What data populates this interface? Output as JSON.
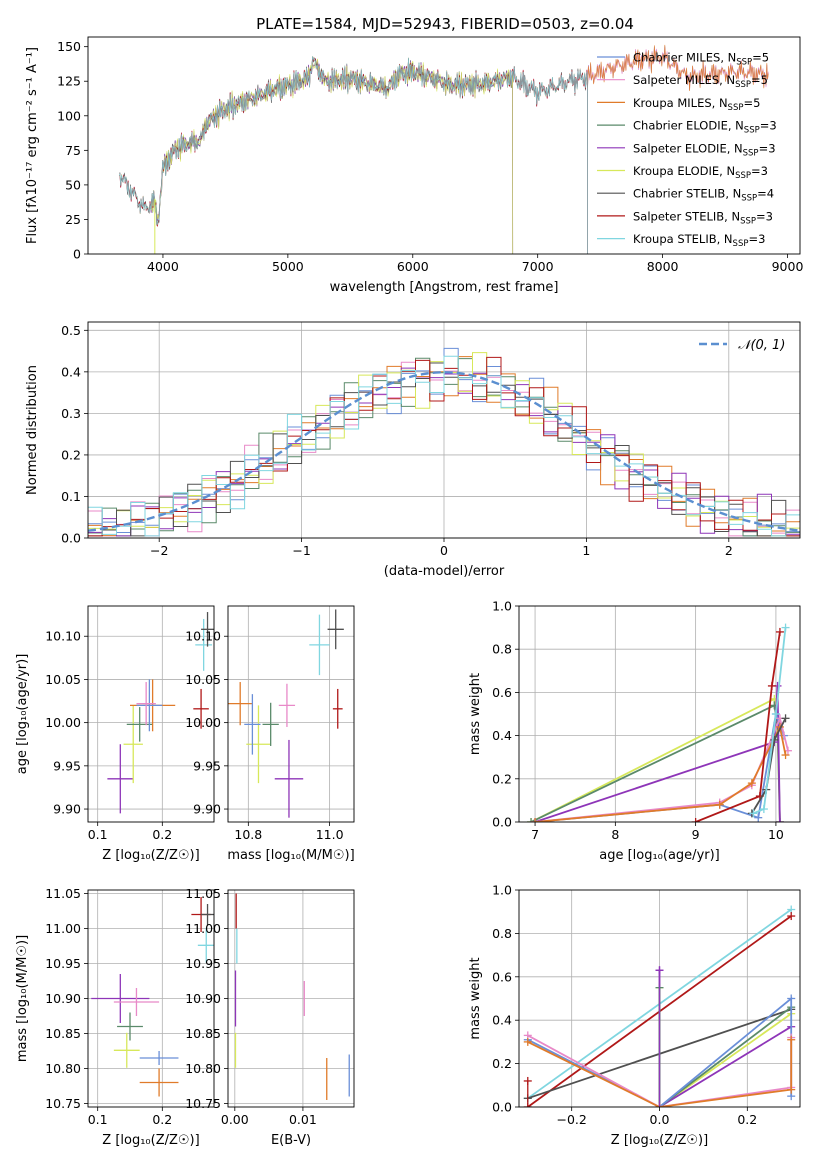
{
  "figure": {
    "title": "PLATE=1584, MJD=52943, FIBERID=0503, z=0.04"
  },
  "colors": {
    "Chabrier MILES": "#6a8fd8",
    "Salpeter MILES": "#e889c8",
    "Kroupa MILES": "#e07b2a",
    "Chabrier ELODIE": "#5a8a6a",
    "Salpeter ELODIE": "#8e35b8",
    "Kroupa ELODIE": "#d7e85a",
    "Chabrier STELIB": "#505050",
    "Salpeter STELIB": "#b01818",
    "Kroupa STELIB": "#80d6e0",
    "gaussian": "#5b8fd0"
  },
  "chart_data": [
    {
      "id": "spectrum",
      "type": "line",
      "xlabel": "wavelength [Angstrom, rest frame]",
      "ylabel": "Flux [fλ10⁻¹⁷ erg cm⁻² s⁻¹ A⁻¹]",
      "xlim": [
        3400,
        9100
      ],
      "ylim": [
        0,
        157
      ],
      "xticks": [
        4000,
        5000,
        6000,
        7000,
        8000,
        9000
      ],
      "yticks": [
        0,
        25,
        50,
        75,
        100,
        125,
        150
      ],
      "legend_position": "right",
      "series": [
        {
          "name": "Chabrier MILES, N",
          "sub": "SSP",
          "suffix": "=5",
          "range": [
            3650,
            8850
          ],
          "offset": 0
        },
        {
          "name": "Salpeter MILES, N",
          "sub": "SSP",
          "suffix": "=5",
          "range": [
            3650,
            8850
          ],
          "offset": 1
        },
        {
          "name": "Kroupa MILES, N",
          "sub": "SSP",
          "suffix": "=5",
          "range": [
            3650,
            8850
          ],
          "offset": -1
        },
        {
          "name": "Chabrier ELODIE, N",
          "sub": "SSP",
          "suffix": "=3",
          "range": [
            3900,
            6800
          ],
          "offset": 0.5
        },
        {
          "name": "Salpeter ELODIE, N",
          "sub": "SSP",
          "suffix": "=3",
          "range": [
            3900,
            6800
          ],
          "offset": -0.5
        },
        {
          "name": "Kroupa ELODIE, N",
          "sub": "SSP",
          "suffix": "=3",
          "range": [
            3900,
            6800
          ],
          "offset": 1.5
        },
        {
          "name": "Chabrier STELIB, N",
          "sub": "SSP",
          "suffix": "=4",
          "range": [
            3650,
            7400
          ],
          "offset": -1.5
        },
        {
          "name": "Salpeter STELIB, N",
          "sub": "SSP",
          "suffix": "=3",
          "range": [
            3650,
            7400
          ],
          "offset": 0.8
        },
        {
          "name": "Kroupa STELIB, N",
          "sub": "SSP",
          "suffix": "=3",
          "range": [
            3650,
            7400
          ],
          "offset": -0.8
        }
      ],
      "continuum": [
        [
          3650,
          58
        ],
        [
          3750,
          45
        ],
        [
          3850,
          33
        ],
        [
          3930,
          38
        ],
        [
          3960,
          22
        ],
        [
          4000,
          62
        ],
        [
          4100,
          76
        ],
        [
          4200,
          80
        ],
        [
          4300,
          82
        ],
        [
          4350,
          95
        ],
        [
          4500,
          105
        ],
        [
          4700,
          112
        ],
        [
          4860,
          118
        ],
        [
          5000,
          122
        ],
        [
          5100,
          125
        ],
        [
          5170,
          128
        ],
        [
          5200,
          140
        ],
        [
          5300,
          125
        ],
        [
          5500,
          127
        ],
        [
          5800,
          120
        ],
        [
          5890,
          130
        ],
        [
          6000,
          132
        ],
        [
          6200,
          126
        ],
        [
          6300,
          122
        ],
        [
          6563,
          123
        ],
        [
          6700,
          126
        ],
        [
          6800,
          128
        ],
        [
          6900,
          122
        ],
        [
          7000,
          117
        ],
        [
          7100,
          120
        ],
        [
          7250,
          125
        ],
        [
          7400,
          128
        ],
        [
          7600,
          135
        ],
        [
          7800,
          140
        ],
        [
          8000,
          143
        ],
        [
          8200,
          128
        ],
        [
          8400,
          130
        ],
        [
          8600,
          132
        ],
        [
          8800,
          130
        ]
      ]
    },
    {
      "id": "residual-histogram",
      "type": "histogram",
      "xlabel": "(data-model)/error",
      "ylabel": "Normed distribution",
      "xlim": [
        -2.5,
        2.5
      ],
      "ylim": [
        0,
        0.52
      ],
      "xticks": [
        -2,
        -1,
        0,
        1,
        2
      ],
      "yticks": [
        0.0,
        0.1,
        0.2,
        0.3,
        0.4,
        0.5
      ],
      "bin_width": 0.1,
      "grid": true,
      "legend": "𝒩(0, 1)",
      "legend_position": "top-right",
      "gaussian": {
        "mean": 0,
        "sigma": 1
      }
    },
    {
      "id": "age-vs-z",
      "type": "errorbar",
      "xlabel": "Z [log₁₀(Z/Z☉)]",
      "ylabel": "age  [log₁₀(age/yr)]",
      "xlim": [
        0.085,
        0.28
      ],
      "ylim": [
        9.885,
        10.135
      ],
      "xticks": [
        0.1,
        0.2
      ],
      "yticks": [
        9.9,
        9.95,
        10.0,
        10.05,
        10.1
      ],
      "grid": true,
      "points": [
        {
          "model": "Salpeter ELODIE",
          "x": 0.135,
          "y": 9.935,
          "xerr": 0.02,
          "yerr": 0.04
        },
        {
          "model": "Kroupa ELODIE",
          "x": 0.155,
          "y": 9.975,
          "xerr": 0.015,
          "yerr": 0.045
        },
        {
          "model": "Chabrier ELODIE",
          "x": 0.165,
          "y": 9.998,
          "xerr": 0.02,
          "yerr": 0.02
        },
        {
          "model": "Kroupa MILES",
          "x": 0.185,
          "y": 10.02,
          "xerr": 0.035,
          "yerr": 0.03
        },
        {
          "model": "Chabrier MILES",
          "x": 0.18,
          "y": 10.02,
          "xerr": 0.02,
          "yerr": 0.03
        },
        {
          "model": "Salpeter MILES",
          "x": 0.175,
          "y": 10.022,
          "xerr": 0.015,
          "yerr": 0.025
        },
        {
          "model": "Salpeter STELIB",
          "x": 0.26,
          "y": 10.016,
          "xerr": 0.012,
          "yerr": 0.023
        },
        {
          "model": "Kroupa STELIB",
          "x": 0.264,
          "y": 10.09,
          "xerr": 0.013,
          "yerr": 0.03
        },
        {
          "model": "Chabrier STELIB",
          "x": 0.27,
          "y": 10.108,
          "xerr": 0.01,
          "yerr": 0.02
        }
      ]
    },
    {
      "id": "age-vs-mass",
      "type": "errorbar",
      "xlabel": "mass [log₁₀(M/M☉)]",
      "ylabel": "",
      "xlim": [
        10.75,
        11.06
      ],
      "ylim": [
        9.885,
        10.135
      ],
      "xticks": [
        10.8,
        11.0
      ],
      "yticks": [
        9.9,
        9.95,
        10.0,
        10.05,
        10.1
      ],
      "grid": true,
      "points": [
        {
          "model": "Kroupa MILES",
          "x": 10.78,
          "y": 10.022,
          "xerr": 0.03,
          "yerr": 0.025
        },
        {
          "model": "Kroupa ELODIE",
          "x": 10.825,
          "y": 9.975,
          "xerr": 0.03,
          "yerr": 0.045
        },
        {
          "model": "Chabrier MILES",
          "x": 10.81,
          "y": 9.998,
          "xerr": 0.02,
          "yerr": 0.035
        },
        {
          "model": "Chabrier ELODIE",
          "x": 10.855,
          "y": 9.998,
          "xerr": 0.02,
          "yerr": 0.025
        },
        {
          "model": "Salpeter MILES",
          "x": 10.895,
          "y": 10.02,
          "xerr": 0.02,
          "yerr": 0.025
        },
        {
          "model": "Salpeter ELODIE",
          "x": 10.9,
          "y": 9.935,
          "xerr": 0.035,
          "yerr": 0.045
        },
        {
          "model": "Kroupa STELIB",
          "x": 10.975,
          "y": 10.09,
          "xerr": 0.025,
          "yerr": 0.035
        },
        {
          "model": "Chabrier STELIB",
          "x": 11.015,
          "y": 10.108,
          "xerr": 0.02,
          "yerr": 0.023
        },
        {
          "model": "Salpeter STELIB",
          "x": 11.02,
          "y": 10.016,
          "xerr": 0.012,
          "yerr": 0.023
        }
      ]
    },
    {
      "id": "mass-weight-vs-age",
      "type": "line",
      "xlabel": "age  [log₁₀(age/yr)]",
      "ylabel": "mass weight",
      "xlim": [
        6.8,
        10.3
      ],
      "ylim": [
        0,
        1.0
      ],
      "xticks": [
        7,
        8,
        9,
        10
      ],
      "yticks": [
        0.0,
        0.2,
        0.4,
        0.6,
        0.8,
        1.0
      ],
      "grid": true,
      "series": [
        {
          "model": "Kroupa ELODIE",
          "points": [
            [
              6.95,
              0.0
            ],
            [
              9.98,
              0.57
            ],
            [
              10.02,
              0.43
            ],
            [
              10.05,
              0.0
            ]
          ]
        },
        {
          "model": "Chabrier ELODIE",
          "points": [
            [
              6.95,
              0.0
            ],
            [
              9.98,
              0.54
            ],
            [
              10.02,
              0.46
            ],
            [
              10.05,
              0.0
            ]
          ]
        },
        {
          "model": "Salpeter ELODIE",
          "points": [
            [
              7.0,
              0.0
            ],
            [
              9.98,
              0.37
            ],
            [
              10.02,
              0.63
            ],
            [
              10.05,
              0.0
            ]
          ]
        },
        {
          "model": "Chabrier MILES",
          "points": [
            [
              7.0,
              0.0
            ],
            [
              9.3,
              0.08
            ],
            [
              9.78,
              0.02
            ],
            [
              10.0,
              0.5
            ],
            [
              10.1,
              0.4
            ]
          ]
        },
        {
          "model": "Salpeter MILES",
          "points": [
            [
              7.0,
              0.0
            ],
            [
              9.3,
              0.09
            ],
            [
              9.7,
              0.17
            ],
            [
              10.05,
              0.48
            ],
            [
              10.15,
              0.33
            ]
          ]
        },
        {
          "model": "Kroupa MILES",
          "points": [
            [
              7.0,
              0.0
            ],
            [
              9.3,
              0.08
            ],
            [
              9.7,
              0.18
            ],
            [
              10.05,
              0.44
            ],
            [
              10.12,
              0.31
            ]
          ]
        },
        {
          "model": "Salpeter STELIB",
          "points": [
            [
              9.0,
              0.0
            ],
            [
              9.8,
              0.12
            ],
            [
              9.95,
              0.63
            ],
            [
              10.05,
              0.88
            ]
          ]
        },
        {
          "model": "Chabrier STELIB",
          "points": [
            [
              9.7,
              0.04
            ],
            [
              9.88,
              0.15
            ],
            [
              9.98,
              0.38
            ],
            [
              10.12,
              0.48
            ]
          ]
        },
        {
          "model": "Kroupa STELIB",
          "points": [
            [
              9.72,
              0.04
            ],
            [
              9.85,
              0.06
            ],
            [
              10.0,
              0.5
            ],
            [
              10.12,
              0.9
            ]
          ]
        }
      ]
    },
    {
      "id": "mass-vs-z",
      "type": "errorbar",
      "xlabel": "Z [log₁₀(Z/Z☉)]",
      "ylabel": "mass [log₁₀(M/M☉)]",
      "xlim": [
        0.085,
        0.28
      ],
      "ylim": [
        10.745,
        11.055
      ],
      "xticks": [
        0.1,
        0.2
      ],
      "yticks": [
        10.75,
        10.8,
        10.85,
        10.9,
        10.95,
        11.0,
        11.05
      ],
      "grid": true,
      "points": [
        {
          "model": "Salpeter ELODIE",
          "x": 0.135,
          "y": 10.9,
          "xerr": 0.045,
          "yerr": 0.035
        },
        {
          "model": "Salpeter MILES",
          "x": 0.16,
          "y": 10.895,
          "xerr": 0.035,
          "yerr": 0.02
        },
        {
          "model": "Chabrier ELODIE",
          "x": 0.15,
          "y": 10.86,
          "xerr": 0.02,
          "yerr": 0.02
        },
        {
          "model": "Kroupa ELODIE",
          "x": 0.145,
          "y": 10.826,
          "xerr": 0.02,
          "yerr": 0.025
        },
        {
          "model": "Chabrier MILES",
          "x": 0.195,
          "y": 10.815,
          "xerr": 0.03,
          "yerr": 0.01
        },
        {
          "model": "Kroupa MILES",
          "x": 0.195,
          "y": 10.78,
          "xerr": 0.03,
          "yerr": 0.02
        },
        {
          "model": "Salpeter STELIB",
          "x": 0.26,
          "y": 11.02,
          "xerr": 0.015,
          "yerr": 0.025
        },
        {
          "model": "Chabrier STELIB",
          "x": 0.27,
          "y": 11.02,
          "xerr": 0.01,
          "yerr": 0.015
        },
        {
          "model": "Kroupa STELIB",
          "x": 0.268,
          "y": 10.976,
          "xerr": 0.013,
          "yerr": 0.025
        }
      ]
    },
    {
      "id": "mass-vs-ebv",
      "type": "errorbar",
      "xlabel": "E(B-V)",
      "ylabel": "",
      "xlim": [
        -0.001,
        0.0175
      ],
      "ylim": [
        10.745,
        11.055
      ],
      "xticks": [
        0.0,
        0.01
      ],
      "yticks": [
        10.75,
        10.8,
        10.85,
        10.9,
        10.95,
        11.0,
        11.05
      ],
      "grid": true,
      "points": [
        {
          "model": "Salpeter STELIB",
          "x": 0.0002,
          "y": 11.025,
          "xerr": 0,
          "yerr": 0.025
        },
        {
          "model": "Kroupa STELIB",
          "x": 0.0003,
          "y": 10.975,
          "xerr": 0,
          "yerr": 0.025
        },
        {
          "model": "Salpeter ELODIE",
          "x": 0.0001,
          "y": 10.9,
          "xerr": 0,
          "yerr": 0.04
        },
        {
          "model": "Kroupa ELODIE",
          "x": 0.0001,
          "y": 10.826,
          "xerr": 0,
          "yerr": 0.025
        },
        {
          "model": "Salpeter MILES",
          "x": 0.0102,
          "y": 10.9,
          "xerr": 0,
          "yerr": 0.025
        },
        {
          "model": "Kroupa MILES",
          "x": 0.0135,
          "y": 10.785,
          "xerr": 0,
          "yerr": 0.03
        },
        {
          "model": "Chabrier MILES",
          "x": 0.0168,
          "y": 10.79,
          "xerr": 0,
          "yerr": 0.03
        }
      ]
    },
    {
      "id": "mass-weight-vs-z",
      "type": "line",
      "xlabel": "Z [log₁₀(Z/Z☉)]",
      "ylabel": "mass weight",
      "xlim": [
        -0.32,
        0.32
      ],
      "ylim": [
        0,
        1.0
      ],
      "xticks": [
        -0.2,
        0.0,
        0.2
      ],
      "yticks": [
        0.0,
        0.2,
        0.4,
        0.6,
        0.8,
        1.0
      ],
      "grid": true,
      "series": [
        {
          "model": "Kroupa STELIB",
          "points": [
            [
              -0.3,
              0.04
            ],
            [
              0.3,
              0.91
            ]
          ]
        },
        {
          "model": "Salpeter STELIB",
          "points": [
            [
              -0.3,
              0.0
            ],
            [
              0.3,
              0.88
            ]
          ]
        },
        {
          "model": "Chabrier STELIB",
          "points": [
            [
              -0.3,
              0.04
            ],
            [
              0.3,
              0.45
            ]
          ]
        },
        {
          "model": "Kroupa ELODIE",
          "points": [
            [
              0.0,
              0.55
            ],
            [
              0.0,
              0.0
            ],
            [
              0.3,
              0.43
            ]
          ]
        },
        {
          "model": "Salpeter ELODIE",
          "points": [
            [
              0.0,
              0.63
            ],
            [
              0.0,
              0.0
            ],
            [
              0.3,
              0.37
            ]
          ]
        },
        {
          "model": "Chabrier ELODIE",
          "points": [
            [
              0.0,
              0.55
            ],
            [
              0.0,
              0.0
            ],
            [
              0.3,
              0.46
            ]
          ]
        },
        {
          "model": "Chabrier MILES",
          "points": [
            [
              -0.3,
              0.31
            ],
            [
              0.0,
              0.0
            ],
            [
              0.3,
              0.5
            ],
            [
              0.3,
              0.05
            ]
          ]
        },
        {
          "model": "Salpeter MILES",
          "points": [
            [
              -0.3,
              0.33
            ],
            [
              0.0,
              0.0
            ],
            [
              0.3,
              0.09
            ],
            [
              0.3,
              0.32
            ]
          ]
        },
        {
          "model": "Kroupa MILES",
          "points": [
            [
              -0.3,
              0.3
            ],
            [
              0.0,
              0.0
            ],
            [
              0.3,
              0.08
            ],
            [
              0.3,
              0.31
            ]
          ]
        }
      ],
      "extra_marks": [
        {
          "model": "Salpeter STELIB",
          "x": -0.3,
          "y": 0.12
        },
        {
          "model": "Salpeter ELODIE",
          "x": 0.0,
          "y": 0.63
        }
      ]
    }
  ]
}
